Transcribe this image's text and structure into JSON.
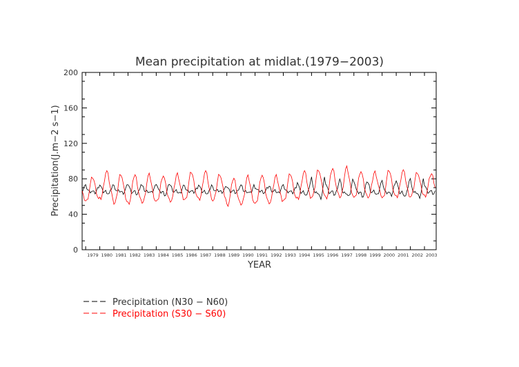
{
  "chart_data": {
    "type": "line",
    "title": "Mean precipitation at midlat.(1979−2003)",
    "xlabel": "YEAR",
    "ylabel": "Precipitation(J.m−2 s−1)",
    "ylim": [
      0,
      200
    ],
    "yticks": [
      "0",
      "40",
      "80",
      "120",
      "160",
      "200"
    ],
    "xlim": [
      1978.75,
      2003.83
    ],
    "xticks": [
      "1979",
      "1980",
      "1981",
      "1982",
      "1983",
      "1984",
      "1985",
      "1986",
      "1987",
      "1988",
      "1989",
      "1990",
      "1991",
      "1992",
      "1993",
      "1994",
      "1995",
      "1996",
      "1997",
      "1998",
      "1999",
      "2000",
      "2001",
      "2002",
      "2003"
    ],
    "grid": false,
    "legend_position": "bottom-left",
    "series_style": "monthly-means",
    "series": [
      {
        "name": "Precipitation (N30 − N60)",
        "color": "#000000",
        "dash": "long-dash",
        "cycle": {
          "mean": 67,
          "annual_amplitude": 7,
          "semiannual_amplitude": 4,
          "phase": 0
        },
        "years": [
          "1979",
          "1980",
          "1981",
          "1982",
          "1983",
          "1984",
          "1985",
          "1986",
          "1987",
          "1988",
          "1989",
          "1990",
          "1991",
          "1992",
          "1993",
          "1994",
          "1995",
          "1996",
          "1997",
          "1998",
          "1999",
          "2000",
          "2001",
          "2002",
          "2003"
        ],
        "annual_peak": [
          72,
          74,
          72,
          75,
          72,
          76,
          73,
          71,
          74,
          70,
          72,
          73,
          71,
          72,
          72,
          77,
          82,
          76,
          80,
          79,
          76,
          77,
          79,
          80,
          74
        ]
      },
      {
        "name": "Precipitation (S30 − S60)",
        "color": "#ff0000",
        "dash": "long-dash",
        "cycle": {
          "mean": 68,
          "annual_amplitude": 16,
          "semiannual_amplitude": 2,
          "phase": 3.14
        },
        "years": [
          "1979",
          "1980",
          "1981",
          "1982",
          "1983",
          "1984",
          "1985",
          "1986",
          "1987",
          "1988",
          "1989",
          "1990",
          "1991",
          "1992",
          "1993",
          "1994",
          "1995",
          "1996",
          "1997",
          "1998",
          "1999",
          "2000",
          "2001",
          "2002",
          "2003"
        ],
        "annual_peak": [
          82,
          89,
          86,
          85,
          85,
          84,
          86,
          88,
          89,
          86,
          81,
          83,
          85,
          84,
          86,
          89,
          91,
          92,
          93,
          89,
          88,
          90,
          90,
          88,
          86
        ],
        "annual_trough": [
          52,
          54,
          48,
          49,
          50,
          51,
          52,
          53,
          53,
          52,
          47,
          48,
          48,
          50,
          52,
          54,
          56,
          55,
          56,
          55,
          57,
          55,
          56,
          57,
          58
        ]
      }
    ]
  }
}
